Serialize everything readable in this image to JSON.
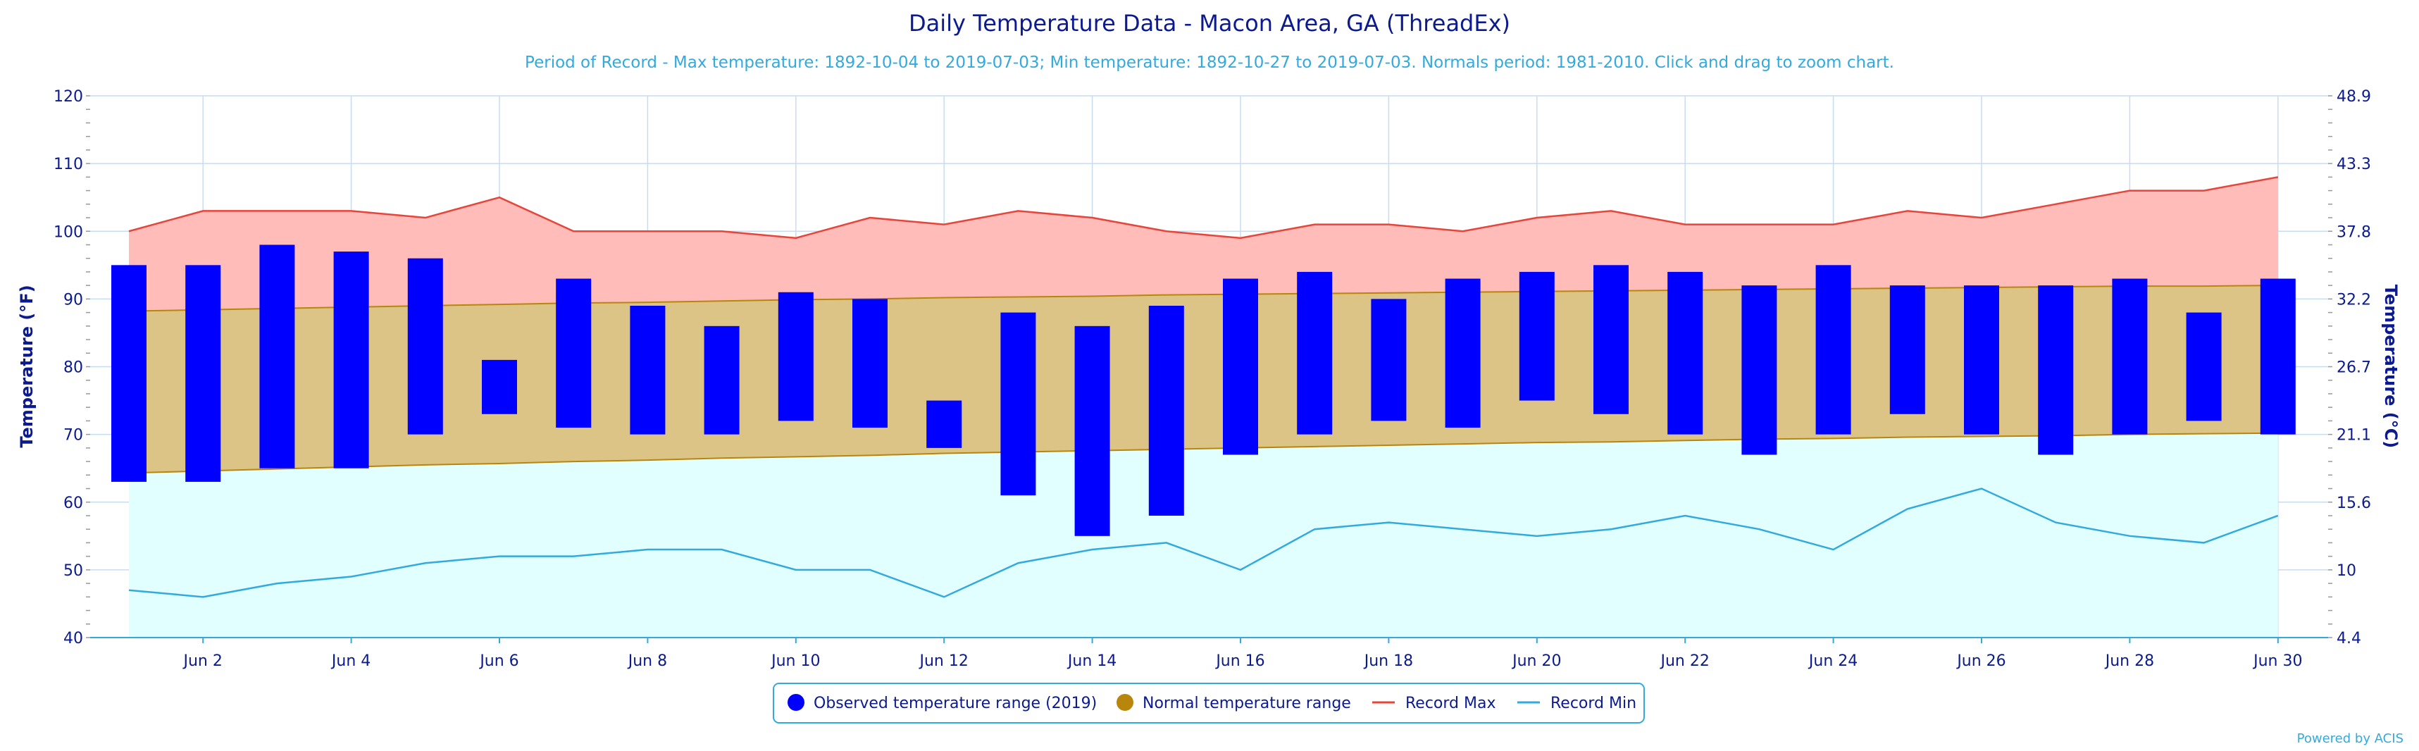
{
  "chart_data": {
    "type": "bar",
    "title": "Daily Temperature Data - Macon Area, GA (ThreadEx)",
    "subtitle": "Period of Record - Max temperature: 1892-10-04 to 2019-07-03; Min temperature: 1892-10-27 to 2019-07-03. Normals period: 1981-2010. Click and drag to zoom chart.",
    "ylabel_left": "Temperature (°F)",
    "ylabel_right": "Temperature (°C)",
    "ylim": [
      40,
      120
    ],
    "y_ticks_left": [
      "40",
      "50",
      "60",
      "70",
      "80",
      "90",
      "100",
      "110",
      "120"
    ],
    "y_ticks_right": [
      "4.4",
      "10",
      "15.6",
      "21.1",
      "26.7",
      "32.2",
      "37.8",
      "43.3",
      "48.9"
    ],
    "x_tick_labels": [
      "Jun 2",
      "Jun 4",
      "Jun 6",
      "Jun 8",
      "Jun 10",
      "Jun 12",
      "Jun 14",
      "Jun 16",
      "Jun 18",
      "Jun 20",
      "Jun 22",
      "Jun 24",
      "Jun 26",
      "Jun 28",
      "Jun 30"
    ],
    "x_tick_days": [
      2,
      4,
      6,
      8,
      10,
      12,
      14,
      16,
      18,
      20,
      22,
      24,
      26,
      28,
      30
    ],
    "days": [
      1,
      2,
      3,
      4,
      5,
      6,
      7,
      8,
      9,
      10,
      11,
      12,
      13,
      14,
      15,
      16,
      17,
      18,
      19,
      20,
      21,
      22,
      23,
      24,
      25,
      26,
      27,
      28,
      29,
      30
    ],
    "observed_max": [
      95,
      95,
      98,
      97,
      96,
      81,
      93,
      89,
      86,
      91,
      90,
      75,
      88,
      86,
      89,
      93,
      94,
      90,
      93,
      94,
      95,
      94,
      92,
      95,
      92,
      92,
      92,
      93,
      88,
      93
    ],
    "observed_min": [
      63,
      63,
      65,
      65,
      70,
      73,
      71,
      70,
      70,
      72,
      71,
      68,
      61,
      55,
      58,
      67,
      70,
      72,
      71,
      75,
      73,
      70,
      67,
      70,
      73,
      70,
      67,
      70,
      72,
      70
    ],
    "normal_max": [
      88.2,
      88.4,
      88.6,
      88.8,
      89.0,
      89.2,
      89.4,
      89.5,
      89.7,
      89.9,
      90.0,
      90.2,
      90.3,
      90.4,
      90.6,
      90.7,
      90.8,
      90.9,
      91.0,
      91.1,
      91.2,
      91.3,
      91.4,
      91.5,
      91.6,
      91.7,
      91.8,
      91.9,
      91.9,
      92.0
    ],
    "normal_min": [
      64.3,
      64.6,
      64.9,
      65.2,
      65.5,
      65.7,
      66.0,
      66.2,
      66.5,
      66.7,
      66.9,
      67.2,
      67.4,
      67.6,
      67.8,
      68.0,
      68.2,
      68.4,
      68.6,
      68.8,
      68.9,
      69.1,
      69.3,
      69.4,
      69.6,
      69.7,
      69.8,
      70.0,
      70.1,
      70.2
    ],
    "record_max": [
      100,
      103,
      103,
      103,
      102,
      105,
      100,
      100,
      100,
      99,
      102,
      101,
      103,
      102,
      100,
      99,
      101,
      101,
      100,
      102,
      103,
      101,
      101,
      101,
      103,
      102,
      104,
      106,
      106,
      108
    ],
    "record_min": [
      47,
      46,
      48,
      49,
      51,
      52,
      52,
      53,
      53,
      50,
      50,
      46,
      51,
      53,
      54,
      50,
      56,
      57,
      56,
      55,
      56,
      58,
      56,
      53,
      59,
      62,
      57,
      55,
      54,
      58
    ],
    "series": [
      {
        "name": "Observed temperature range (2019)",
        "color": "#0000ff"
      },
      {
        "name": "Normal temperature range",
        "color": "#b8860b"
      },
      {
        "name": "Record Max",
        "color": "#e8443a"
      },
      {
        "name": "Record Min",
        "color": "#33aadd"
      }
    ],
    "legend_position": "bottom-center",
    "grid": true
  },
  "colors": {
    "title": "#0b1b8f",
    "subtitle": "#33aadd",
    "observed": "#0000ff",
    "normal_fill": "#dcc386",
    "normal_line": "#b8860b",
    "record_max_fill": "#ffbcb8",
    "record_max_line": "#e8443a",
    "record_min_fill": "#e2ffff",
    "record_min_line": "#33aadd",
    "grid": "#c9dcef"
  },
  "credit": "Powered by ACIS"
}
